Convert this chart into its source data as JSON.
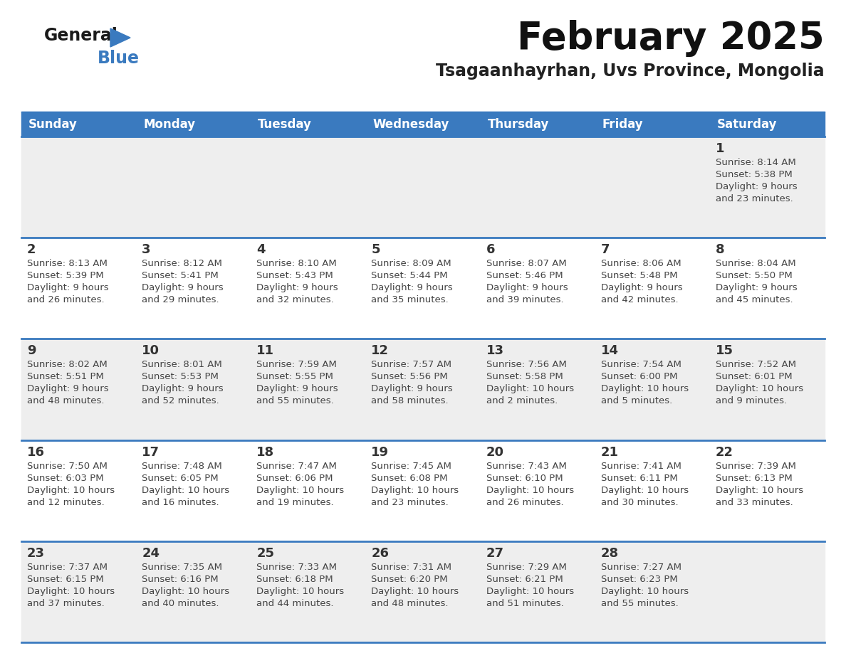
{
  "title": "February 2025",
  "subtitle": "Tsagaanhayrhan, Uvs Province, Mongolia",
  "days_of_week": [
    "Sunday",
    "Monday",
    "Tuesday",
    "Wednesday",
    "Thursday",
    "Friday",
    "Saturday"
  ],
  "header_bg": "#3a7abf",
  "header_text": "#ffffff",
  "cell_bg_odd": "#eeeeee",
  "cell_bg_even": "#ffffff",
  "separator_color": "#3a7abf",
  "day_num_color": "#333333",
  "text_color": "#444444",
  "logo_general_color": "#1a1a1a",
  "logo_blue_color": "#3a7abf",
  "calendar": [
    [
      null,
      null,
      null,
      null,
      null,
      null,
      {
        "day": 1,
        "sunrise": "8:14 AM",
        "sunset": "5:38 PM",
        "daylight": "9 hours and 23 minutes."
      }
    ],
    [
      {
        "day": 2,
        "sunrise": "8:13 AM",
        "sunset": "5:39 PM",
        "daylight": "9 hours and 26 minutes."
      },
      {
        "day": 3,
        "sunrise": "8:12 AM",
        "sunset": "5:41 PM",
        "daylight": "9 hours and 29 minutes."
      },
      {
        "day": 4,
        "sunrise": "8:10 AM",
        "sunset": "5:43 PM",
        "daylight": "9 hours and 32 minutes."
      },
      {
        "day": 5,
        "sunrise": "8:09 AM",
        "sunset": "5:44 PM",
        "daylight": "9 hours and 35 minutes."
      },
      {
        "day": 6,
        "sunrise": "8:07 AM",
        "sunset": "5:46 PM",
        "daylight": "9 hours and 39 minutes."
      },
      {
        "day": 7,
        "sunrise": "8:06 AM",
        "sunset": "5:48 PM",
        "daylight": "9 hours and 42 minutes."
      },
      {
        "day": 8,
        "sunrise": "8:04 AM",
        "sunset": "5:50 PM",
        "daylight": "9 hours and 45 minutes."
      }
    ],
    [
      {
        "day": 9,
        "sunrise": "8:02 AM",
        "sunset": "5:51 PM",
        "daylight": "9 hours and 48 minutes."
      },
      {
        "day": 10,
        "sunrise": "8:01 AM",
        "sunset": "5:53 PM",
        "daylight": "9 hours and 52 minutes."
      },
      {
        "day": 11,
        "sunrise": "7:59 AM",
        "sunset": "5:55 PM",
        "daylight": "9 hours and 55 minutes."
      },
      {
        "day": 12,
        "sunrise": "7:57 AM",
        "sunset": "5:56 PM",
        "daylight": "9 hours and 58 minutes."
      },
      {
        "day": 13,
        "sunrise": "7:56 AM",
        "sunset": "5:58 PM",
        "daylight": "10 hours and 2 minutes."
      },
      {
        "day": 14,
        "sunrise": "7:54 AM",
        "sunset": "6:00 PM",
        "daylight": "10 hours and 5 minutes."
      },
      {
        "day": 15,
        "sunrise": "7:52 AM",
        "sunset": "6:01 PM",
        "daylight": "10 hours and 9 minutes."
      }
    ],
    [
      {
        "day": 16,
        "sunrise": "7:50 AM",
        "sunset": "6:03 PM",
        "daylight": "10 hours and 12 minutes."
      },
      {
        "day": 17,
        "sunrise": "7:48 AM",
        "sunset": "6:05 PM",
        "daylight": "10 hours and 16 minutes."
      },
      {
        "day": 18,
        "sunrise": "7:47 AM",
        "sunset": "6:06 PM",
        "daylight": "10 hours and 19 minutes."
      },
      {
        "day": 19,
        "sunrise": "7:45 AM",
        "sunset": "6:08 PM",
        "daylight": "10 hours and 23 minutes."
      },
      {
        "day": 20,
        "sunrise": "7:43 AM",
        "sunset": "6:10 PM",
        "daylight": "10 hours and 26 minutes."
      },
      {
        "day": 21,
        "sunrise": "7:41 AM",
        "sunset": "6:11 PM",
        "daylight": "10 hours and 30 minutes."
      },
      {
        "day": 22,
        "sunrise": "7:39 AM",
        "sunset": "6:13 PM",
        "daylight": "10 hours and 33 minutes."
      }
    ],
    [
      {
        "day": 23,
        "sunrise": "7:37 AM",
        "sunset": "6:15 PM",
        "daylight": "10 hours and 37 minutes."
      },
      {
        "day": 24,
        "sunrise": "7:35 AM",
        "sunset": "6:16 PM",
        "daylight": "10 hours and 40 minutes."
      },
      {
        "day": 25,
        "sunrise": "7:33 AM",
        "sunset": "6:18 PM",
        "daylight": "10 hours and 44 minutes."
      },
      {
        "day": 26,
        "sunrise": "7:31 AM",
        "sunset": "6:20 PM",
        "daylight": "10 hours and 48 minutes."
      },
      {
        "day": 27,
        "sunrise": "7:29 AM",
        "sunset": "6:21 PM",
        "daylight": "10 hours and 51 minutes."
      },
      {
        "day": 28,
        "sunrise": "7:27 AM",
        "sunset": "6:23 PM",
        "daylight": "10 hours and 55 minutes."
      },
      null
    ]
  ]
}
